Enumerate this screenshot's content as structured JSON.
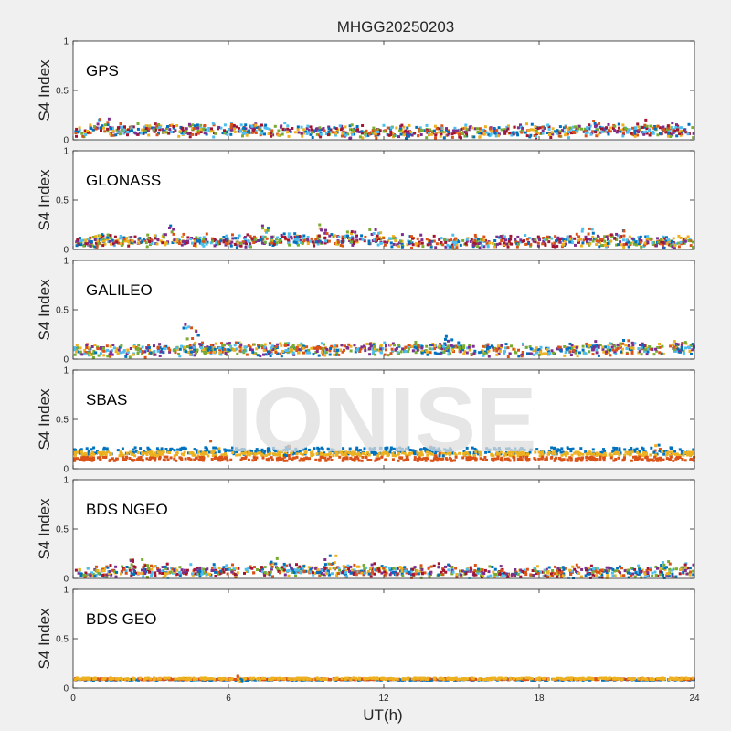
{
  "chart_data": {
    "type": "scatter",
    "title": "MHGG20250203",
    "xlabel": "UT(h)",
    "ylabel": "S4 Index",
    "watermark": "IONISE",
    "xlim": [
      0,
      24
    ],
    "xticks": [
      "0",
      "6",
      "12",
      "18",
      "24"
    ],
    "xtick_values": [
      0,
      6,
      12,
      18,
      24
    ],
    "ylim": [
      0,
      1
    ],
    "yticks": [
      "0",
      "0.5",
      "1"
    ],
    "ytick_values": [
      0,
      0.5,
      1
    ],
    "grid": false,
    "colors": {
      "blue": "#0072bd",
      "orange": "#d95319",
      "yellow": "#edb120",
      "purple": "#7e2f8e",
      "green": "#77ac30",
      "cyan": "#4dbeee",
      "darkred": "#a2142f",
      "axes_bg": "#ffffff",
      "figure_bg": "#f0f0f0",
      "watermark": "#dddddd"
    },
    "panels": [
      {
        "label": "GPS",
        "series_colors": [
          "#0072bd",
          "#d95319",
          "#edb120",
          "#7e2f8e",
          "#77ac30",
          "#4dbeee",
          "#a2142f"
        ],
        "profile": [
          [
            0,
            0.08
          ],
          [
            1,
            0.1
          ],
          [
            3,
            0.09
          ],
          [
            6,
            0.09
          ],
          [
            9,
            0.08
          ],
          [
            12,
            0.07
          ],
          [
            15,
            0.08
          ],
          [
            18,
            0.08
          ],
          [
            21,
            0.09
          ],
          [
            24,
            0.08
          ]
        ],
        "spread": 0.05,
        "peaks": [
          [
            1.1,
            0.21
          ],
          [
            3.2,
            0.16
          ],
          [
            4.8,
            0.15
          ],
          [
            7.0,
            0.16
          ],
          [
            8.1,
            0.17
          ],
          [
            17.7,
            0.16
          ],
          [
            20.2,
            0.19
          ],
          [
            21.9,
            0.2
          ],
          [
            23.0,
            0.17
          ]
        ]
      },
      {
        "label": "GLONASS",
        "series_colors": [
          "#0072bd",
          "#d95319",
          "#edb120",
          "#7e2f8e",
          "#77ac30",
          "#4dbeee",
          "#a2142f"
        ],
        "profile": [
          [
            0,
            0.06
          ],
          [
            2,
            0.08
          ],
          [
            4,
            0.09
          ],
          [
            6,
            0.08
          ],
          [
            8,
            0.09
          ],
          [
            10,
            0.1
          ],
          [
            12,
            0.08
          ],
          [
            14,
            0.07
          ],
          [
            17,
            0.07
          ],
          [
            20,
            0.08
          ],
          [
            22,
            0.08
          ],
          [
            24,
            0.07
          ]
        ],
        "spread": 0.05,
        "peaks": [
          [
            1.0,
            0.14
          ],
          [
            3.7,
            0.24
          ],
          [
            7.4,
            0.24
          ],
          [
            9.6,
            0.25
          ],
          [
            10.6,
            0.18
          ],
          [
            11.6,
            0.2
          ],
          [
            19.8,
            0.21
          ],
          [
            21.1,
            0.19
          ],
          [
            22.7,
            0.11
          ]
        ]
      },
      {
        "label": "GALILEO",
        "series_colors": [
          "#0072bd",
          "#d95319",
          "#edb120",
          "#7e2f8e",
          "#77ac30",
          "#4dbeee"
        ],
        "profile": [
          [
            0,
            0.08
          ],
          [
            3,
            0.08
          ],
          [
            5,
            0.1
          ],
          [
            8,
            0.09
          ],
          [
            11,
            0.1
          ],
          [
            14,
            0.1
          ],
          [
            17,
            0.08
          ],
          [
            20,
            0.09
          ],
          [
            22,
            0.1
          ],
          [
            24,
            0.11
          ]
        ],
        "spread": 0.05,
        "peaks": [
          [
            4.4,
            0.35
          ],
          [
            4.6,
            0.29
          ],
          [
            14.4,
            0.23
          ],
          [
            20.0,
            0.18
          ],
          [
            21.2,
            0.19
          ],
          [
            23.4,
            0.17
          ]
        ]
      },
      {
        "label": "SBAS",
        "series_colors": [
          "#0072bd",
          "#d95319",
          "#edb120"
        ],
        "bands": [
          {
            "color": "#0072bd",
            "level": 0.18,
            "spread": 0.035
          },
          {
            "color": "#edb120",
            "level": 0.15,
            "spread": 0.02
          },
          {
            "color": "#d95319",
            "level": 0.1,
            "spread": 0.02
          }
        ],
        "peaks": [
          [
            5.4,
            0.28
          ],
          [
            8.1,
            0.23
          ],
          [
            14.0,
            0.22
          ],
          [
            22.5,
            0.24
          ]
        ]
      },
      {
        "label": "BDS NGEO",
        "series_colors": [
          "#0072bd",
          "#d95319",
          "#edb120",
          "#7e2f8e",
          "#77ac30",
          "#4dbeee",
          "#a2142f"
        ],
        "profile": [
          [
            0,
            0.06
          ],
          [
            3,
            0.07
          ],
          [
            6,
            0.07
          ],
          [
            9,
            0.08
          ],
          [
            12,
            0.07
          ],
          [
            15,
            0.06
          ],
          [
            18,
            0.06
          ],
          [
            21,
            0.06
          ],
          [
            24,
            0.07
          ]
        ],
        "spread": 0.05,
        "peaks": [
          [
            2.4,
            0.19
          ],
          [
            7.7,
            0.2
          ],
          [
            9.9,
            0.23
          ],
          [
            14.3,
            0.15
          ],
          [
            22.8,
            0.17
          ],
          [
            23.8,
            0.15
          ]
        ]
      },
      {
        "label": "BDS GEO",
        "series_colors": [
          "#0072bd",
          "#d95319",
          "#edb120"
        ],
        "bands": [
          {
            "color": "#0072bd",
            "level": 0.085,
            "spread": 0.006
          },
          {
            "color": "#d95319",
            "level": 0.09,
            "spread": 0.006
          },
          {
            "color": "#edb120",
            "level": 0.095,
            "spread": 0.008
          }
        ],
        "peaks": [
          [
            6.4,
            0.12
          ]
        ]
      }
    ]
  }
}
